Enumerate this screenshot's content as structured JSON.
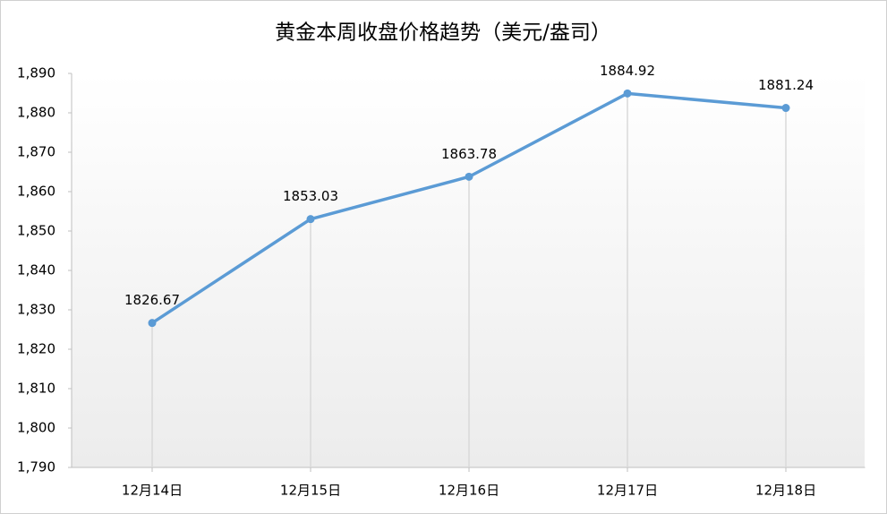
{
  "chart_data": {
    "type": "line",
    "title": "黄金本周收盘价格趋势（美元/盎司）",
    "categories": [
      "12月14日",
      "12月15日",
      "12月16日",
      "12月17日",
      "12月18日"
    ],
    "values": [
      1826.67,
      1853.03,
      1863.78,
      1884.92,
      1881.24
    ],
    "color": "#5b9bd5",
    "ylim": [
      1790,
      1890
    ],
    "yticks": [
      {
        "value": 1790,
        "label": "1,790"
      },
      {
        "value": 1800,
        "label": "1,800"
      },
      {
        "value": 1810,
        "label": "1,810"
      },
      {
        "value": 1820,
        "label": "1,820"
      },
      {
        "value": 1830,
        "label": "1,830"
      },
      {
        "value": 1840,
        "label": "1,840"
      },
      {
        "value": 1850,
        "label": "1,850"
      },
      {
        "value": 1860,
        "label": "1,860"
      },
      {
        "value": 1870,
        "label": "1,870"
      },
      {
        "value": 1880,
        "label": "1,880"
      },
      {
        "value": 1890,
        "label": "1,890"
      }
    ],
    "drop_lines": true
  }
}
